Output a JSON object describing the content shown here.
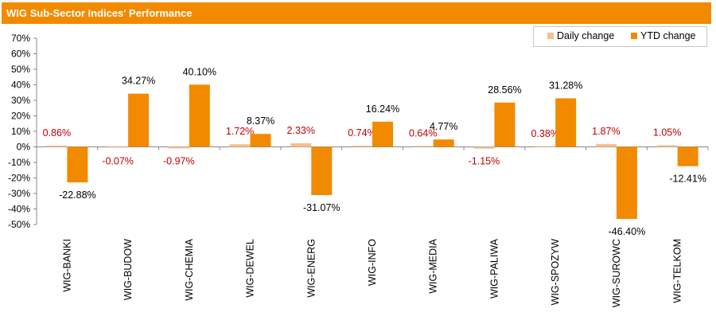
{
  "header": {
    "title": "WIG Sub-Sector Indices' Performance"
  },
  "colors": {
    "accent": "#f28a00",
    "daily": "#f9bf8f",
    "ytd": "#f28a00",
    "daily_label": "#c00000",
    "ytd_label": "#000000"
  },
  "chart_data": {
    "type": "bar",
    "title": "WIG Sub-Sector Indices' Performance",
    "xlabel": "",
    "ylabel": "",
    "categories": [
      "WIG-BANKI",
      "WIG-BUDOW",
      "WIG-CHEMIA",
      "WIG-DEWEL",
      "WIG-ENERG",
      "WIG-INFO",
      "WIG-MEDIA",
      "WIG-PALIWA",
      "WIG-SPOZYW",
      "WIG-SUROWC",
      "WIG-TELKOM"
    ],
    "series": [
      {
        "name": "Daily change",
        "values": [
          0.86,
          -0.07,
          -0.97,
          1.72,
          2.33,
          0.74,
          0.64,
          -1.15,
          0.38,
          1.87,
          1.05
        ],
        "labels": [
          "0.86%",
          "-0.07%",
          "-0.97%",
          "1.72%",
          "2.33%",
          "0.74%",
          "0.64%",
          "-1.15%",
          "0.38%",
          "1.87%",
          "1.05%"
        ]
      },
      {
        "name": "YTD change",
        "values": [
          -22.88,
          34.27,
          40.1,
          8.37,
          -31.07,
          16.24,
          4.77,
          28.56,
          31.28,
          -46.4,
          -12.41
        ],
        "labels": [
          "-22.88%",
          "34.27%",
          "40.10%",
          "8.37%",
          "-31.07%",
          "16.24%",
          "4.77%",
          "28.56%",
          "31.28%",
          "-46.40%",
          "-12.41%"
        ]
      }
    ],
    "ylim": [
      -50,
      70
    ],
    "yticks": [
      70,
      60,
      50,
      40,
      30,
      20,
      10,
      0,
      -10,
      -20,
      -30,
      -40,
      -50
    ],
    "ytick_labels": [
      "70%",
      "60%",
      "50%",
      "40%",
      "30%",
      "20%",
      "10%",
      "0%",
      "-10%",
      "-20%",
      "-30%",
      "-40%",
      "-50%"
    ],
    "grid": false,
    "legend_position": "top-right"
  }
}
